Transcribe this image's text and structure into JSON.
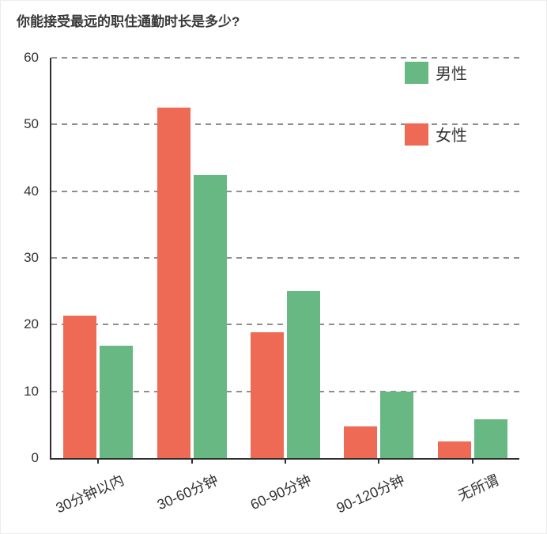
{
  "title": "你能接受最远的职住通勤时长是多少?",
  "legend": {
    "items": [
      {
        "label": "男性",
        "key": "male",
        "color": "#68b884"
      },
      {
        "label": "女性",
        "key": "female",
        "color": "#ee6a54"
      }
    ]
  },
  "chart_data": {
    "type": "bar",
    "title": "你能接受最远的职住通勤时长是多少?",
    "categories": [
      "30分钟以内",
      "30-60分钟",
      "60-90分钟",
      "90-120分钟",
      "无所谓"
    ],
    "series": [
      {
        "name": "女性",
        "key": "female",
        "color": "#ee6a54",
        "values": [
          21.3,
          52.5,
          18.8,
          4.7,
          2.5
        ]
      },
      {
        "name": "男性",
        "key": "male",
        "color": "#68b884",
        "values": [
          16.8,
          42.5,
          25,
          10,
          5.8
        ]
      }
    ],
    "xlabel": "",
    "ylabel": "",
    "ylim": [
      0,
      60
    ],
    "yticks": [
      0,
      10,
      20,
      30,
      40,
      50,
      60
    ],
    "grid": "horizontal-dashed",
    "legend_position": "top-right",
    "group_order": "female-bar-left, male-bar-right"
  }
}
